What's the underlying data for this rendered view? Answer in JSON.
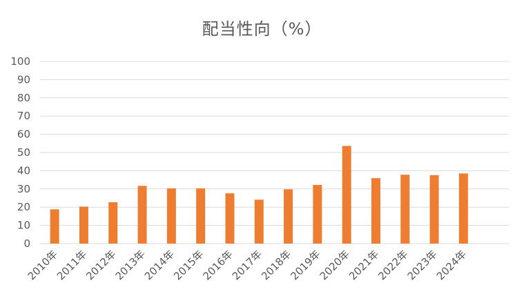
{
  "chart_data": {
    "type": "bar",
    "title": "配当性向（%）",
    "xlabel": "",
    "ylabel": "",
    "categories": [
      "2010年",
      "2011年",
      "2012年",
      "2013年",
      "2014年",
      "2015年",
      "2016年",
      "2017年",
      "2018年",
      "2019年",
      "2020年",
      "2021年",
      "2022年",
      "2023年",
      "2024年"
    ],
    "series": [
      {
        "values": [
          18.8,
          20.3,
          22.7,
          31.7,
          30.3,
          30.3,
          27.6,
          24.1,
          29.8,
          32.2,
          53.6,
          35.9,
          37.8,
          37.6,
          38.5
        ],
        "color": "#ED7D31"
      }
    ],
    "ylim": [
      0,
      100
    ],
    "yticks": [
      0,
      10,
      20,
      30,
      40,
      50,
      60,
      70,
      80,
      90,
      100
    ],
    "grid": true,
    "gridColor": "#d9d9d9",
    "legend": "none"
  }
}
